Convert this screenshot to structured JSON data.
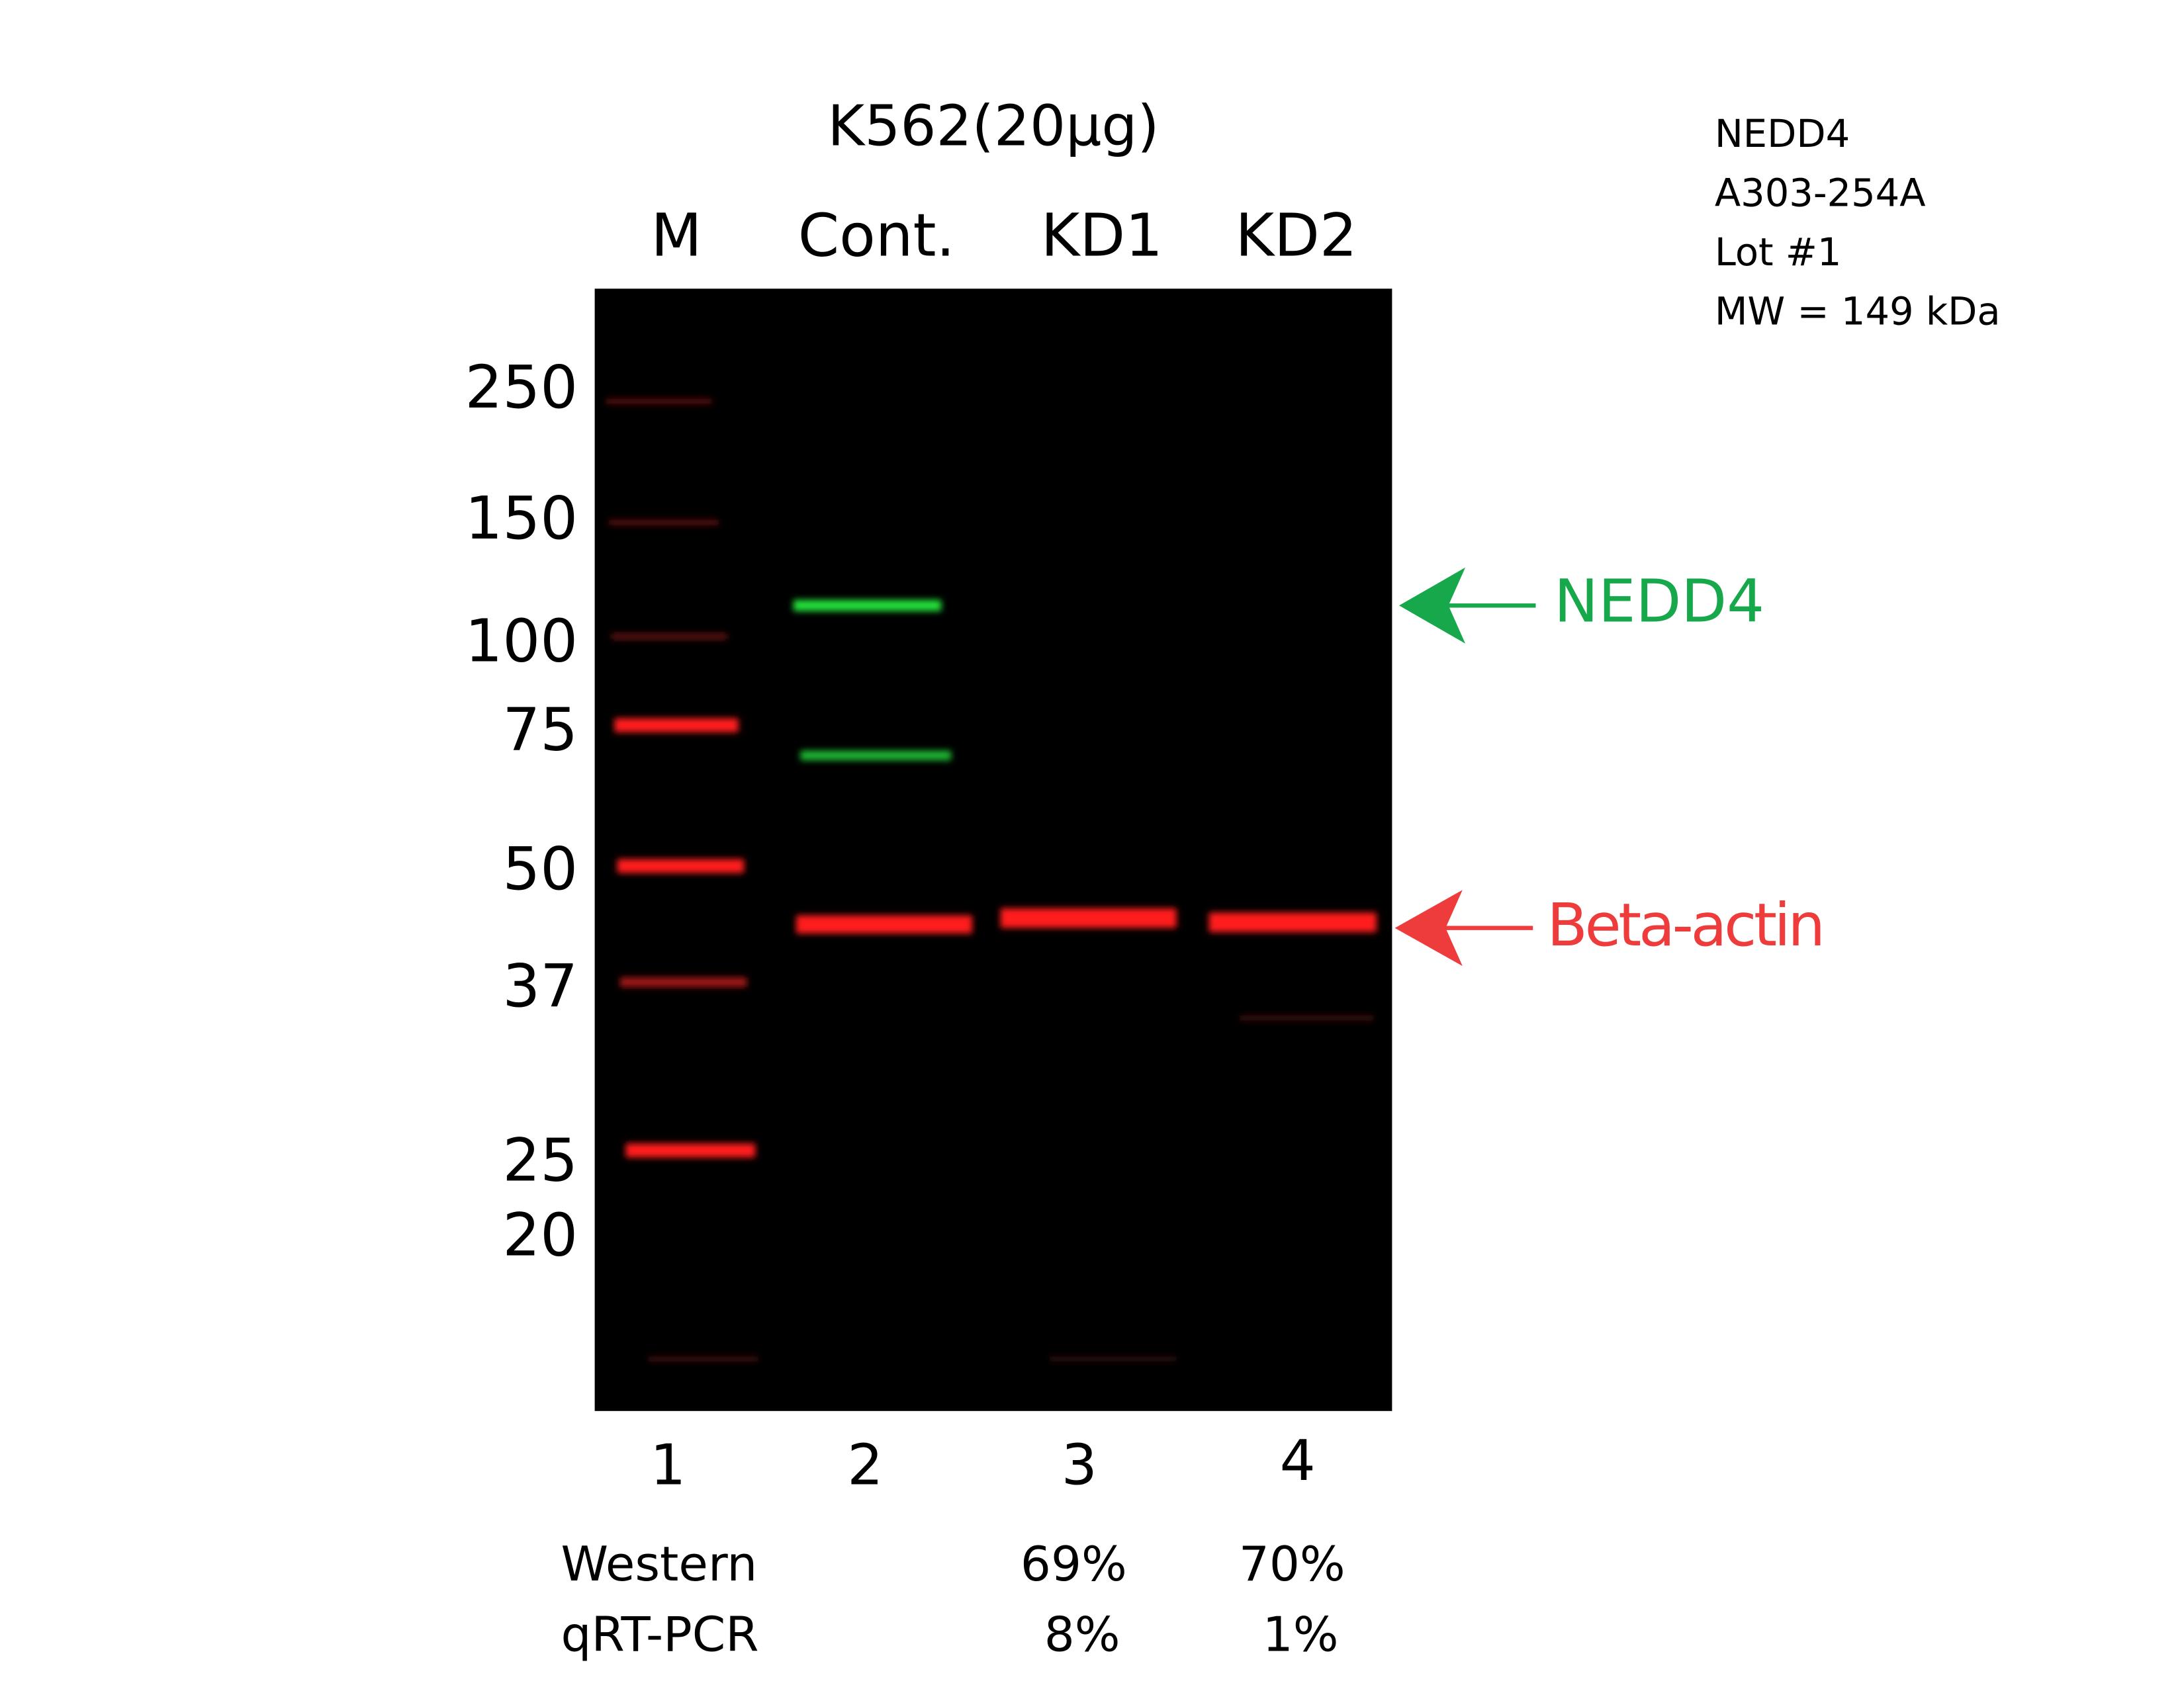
{
  "header": {
    "title": "K562(20µg)",
    "lanes": [
      "M",
      "Cont.",
      "KD1",
      "KD2"
    ]
  },
  "info": [
    "NEDD4",
    "A303-254A",
    "Lot #1",
    "MW = 149 kDa"
  ],
  "markers": [
    "250",
    "150",
    "100",
    "75",
    "50",
    "37",
    "25",
    "20"
  ],
  "lane_numbers": [
    "1",
    "2",
    "3",
    "4"
  ],
  "table": {
    "rows": [
      [
        "Western",
        "69%",
        "70%"
      ],
      [
        "qRT-PCR",
        "8%",
        "1%"
      ]
    ]
  },
  "annotations": {
    "target": "NEDD4",
    "control": "Beta-actin"
  }
}
